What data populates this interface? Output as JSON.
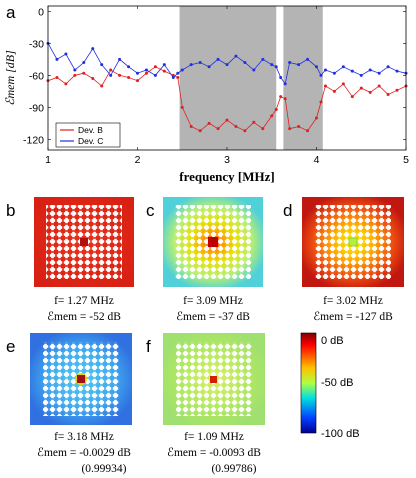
{
  "chart_data": {
    "type": "line",
    "panel_label": "a",
    "xlabel": "frequency [MHz]",
    "ylabel": "ℰmem [dB]",
    "xlim": [
      1,
      5
    ],
    "ylim": [
      -130,
      5
    ],
    "xticks": [
      "1",
      "2",
      "3",
      "4",
      "5"
    ],
    "yticks": [
      "0",
      "-30",
      "-60",
      "-90",
      "-120"
    ],
    "shaded_regions_mhz": [
      [
        2.47,
        3.55
      ],
      [
        3.63,
        4.07
      ]
    ],
    "legend_position": "lower-left",
    "series": [
      {
        "name": "Dev. B",
        "color": "#e02020",
        "x": [
          1.0,
          1.1,
          1.2,
          1.3,
          1.4,
          1.5,
          1.6,
          1.7,
          1.8,
          1.9,
          2.0,
          2.1,
          2.2,
          2.3,
          2.4,
          2.45,
          2.5,
          2.6,
          2.7,
          2.8,
          2.9,
          3.0,
          3.1,
          3.2,
          3.3,
          3.4,
          3.5,
          3.55,
          3.6,
          3.65,
          3.7,
          3.8,
          3.9,
          4.0,
          4.05,
          4.1,
          4.2,
          4.3,
          4.4,
          4.5,
          4.6,
          4.7,
          4.8,
          4.9,
          5.0
        ],
        "values": [
          -65,
          -62,
          -68,
          -60,
          -58,
          -63,
          -70,
          -55,
          -60,
          -62,
          -65,
          -58,
          -52,
          -56,
          -60,
          -62,
          -90,
          -108,
          -112,
          -105,
          -110,
          -102,
          -108,
          -112,
          -104,
          -110,
          -98,
          -92,
          -80,
          -82,
          -110,
          -108,
          -112,
          -100,
          -85,
          -70,
          -75,
          -68,
          -80,
          -72,
          -76,
          -70,
          -78,
          -74,
          -70
        ]
      },
      {
        "name": "Dev. C",
        "color": "#2030e0",
        "x": [
          1.0,
          1.1,
          1.2,
          1.3,
          1.4,
          1.5,
          1.6,
          1.7,
          1.8,
          1.9,
          2.0,
          2.1,
          2.2,
          2.3,
          2.4,
          2.45,
          2.5,
          2.6,
          2.7,
          2.8,
          2.9,
          3.0,
          3.1,
          3.2,
          3.3,
          3.4,
          3.5,
          3.55,
          3.6,
          3.65,
          3.7,
          3.8,
          3.9,
          4.0,
          4.05,
          4.1,
          4.2,
          4.3,
          4.4,
          4.5,
          4.6,
          4.7,
          4.8,
          4.9,
          5.0
        ],
        "values": [
          -30,
          -45,
          -40,
          -55,
          -48,
          -35,
          -50,
          -60,
          -45,
          -52,
          -58,
          -55,
          -60,
          -50,
          -62,
          -58,
          -55,
          -50,
          -48,
          -52,
          -45,
          -50,
          -42,
          -48,
          -55,
          -45,
          -50,
          -52,
          -62,
          -68,
          -48,
          -50,
          -45,
          -52,
          -60,
          -55,
          -58,
          -52,
          -56,
          -60,
          -55,
          -58,
          -52,
          -56,
          -58
        ]
      }
    ]
  },
  "panels": [
    {
      "label": "b",
      "f": "f= 1.27 MHz",
      "e": "ℰmem = -52 dB",
      "extra": ""
    },
    {
      "label": "c",
      "f": "f= 3.09 MHz",
      "e": "ℰmem = -37 dB",
      "extra": ""
    },
    {
      "label": "d",
      "f": "f= 3.02 MHz",
      "e": "ℰmem = -127 dB",
      "extra": ""
    },
    {
      "label": "e",
      "f": "f= 3.18 MHz",
      "e": "ℰmem = -0.0029 dB",
      "extra": "(0.99934)"
    },
    {
      "label": "f",
      "f": "f= 1.09 MHz",
      "e": "ℰmem = -0.0093 dB",
      "extra": "(0.99786)"
    }
  ],
  "colorbar": {
    "labels": [
      "0 dB",
      "-50 dB",
      "-100 dB"
    ]
  }
}
